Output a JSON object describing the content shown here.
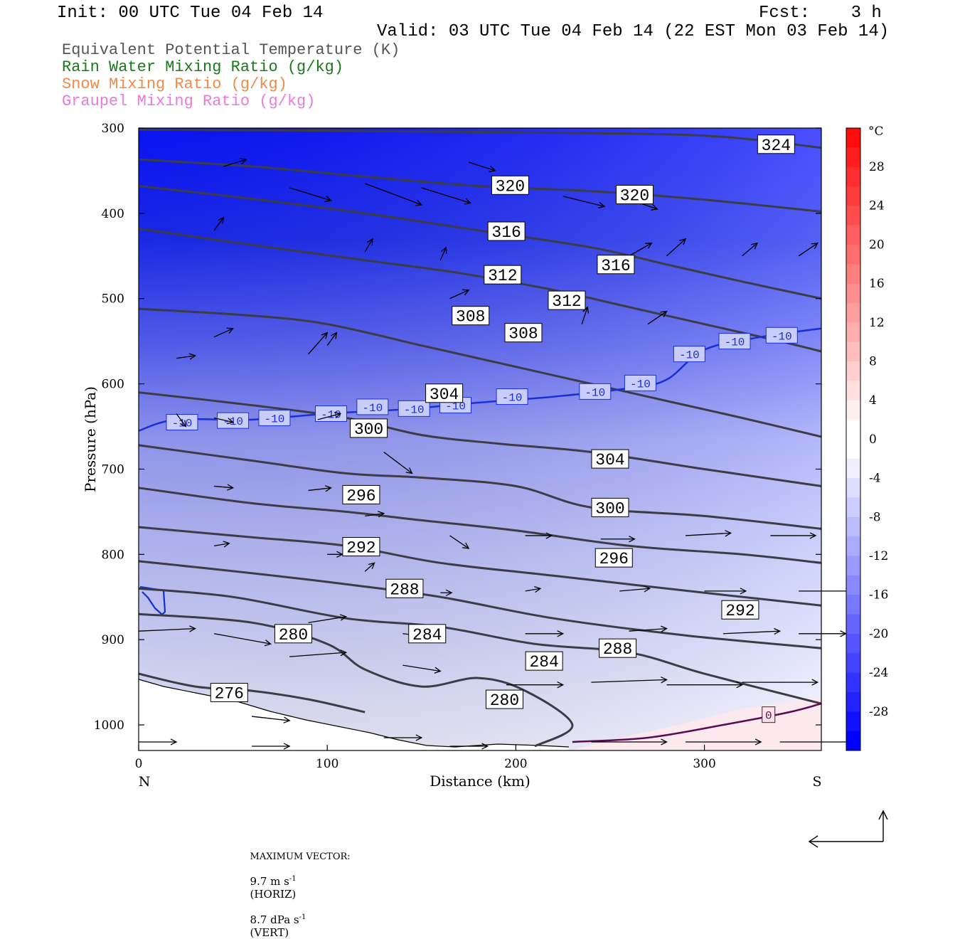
{
  "header": {
    "init": "Init: 00 UTC Tue 04 Feb 14",
    "fcst": "Fcst:    3 h",
    "valid": "Valid: 03 UTC Tue 04 Feb 14 (22 EST Mon 03 Feb 14)",
    "fields": [
      {
        "text": "Equivalent Potential Temperature (K)",
        "color": "#555555"
      },
      {
        "text": "Rain Water Mixing Ratio (g/kg)",
        "color": "#1a7a1a"
      },
      {
        "text": "Snow Mixing Ratio (g/kg)",
        "color": "#f08a4b"
      },
      {
        "text": "Graupel Mixing Ratio (g/kg)",
        "color": "#e87be0"
      }
    ]
  },
  "chart_data": {
    "type": "cross-section",
    "xlabel": "Distance (km)",
    "ylabel": "Pressure (hPa)",
    "x_left_label": "N",
    "x_right_label": "S",
    "xlim": [
      0,
      362
    ],
    "ylim": [
      1030,
      300
    ],
    "xticks": [
      0,
      100,
      200,
      300
    ],
    "yticks": [
      300,
      400,
      500,
      600,
      700,
      800,
      900,
      1000
    ],
    "shading": "temperature (°C)",
    "colorbar": {
      "unit": "°C",
      "ticks": [
        28,
        24,
        20,
        16,
        12,
        8,
        4,
        0,
        -4,
        -8,
        -12,
        -16,
        -20,
        -24,
        -28
      ]
    },
    "theta_e_contours": [
      {
        "value": 324,
        "points": [
          [
            0,
            302
          ],
          [
            100,
            303
          ],
          [
            200,
            305
          ],
          [
            300,
            309
          ],
          [
            362,
            323
          ]
        ],
        "labels": [
          [
            338,
            319
          ]
        ]
      },
      {
        "value": 320,
        "points": [
          [
            0,
            337
          ],
          [
            60,
            345
          ],
          [
            120,
            357
          ],
          [
            180,
            368
          ],
          [
            240,
            374
          ],
          [
            300,
            384
          ],
          [
            362,
            398
          ]
        ],
        "labels": [
          [
            197,
            367
          ],
          [
            263,
            378
          ]
        ]
      },
      {
        "value": 316,
        "points": [
          [
            0,
            368
          ],
          [
            60,
            383
          ],
          [
            120,
            400
          ],
          [
            180,
            420
          ],
          [
            240,
            440
          ],
          [
            280,
            460
          ],
          [
            320,
            480
          ],
          [
            362,
            500
          ]
        ],
        "labels": [
          [
            195,
            421
          ],
          [
            253,
            460
          ]
        ]
      },
      {
        "value": 312,
        "points": [
          [
            0,
            418
          ],
          [
            60,
            437
          ],
          [
            120,
            455
          ],
          [
            170,
            470
          ],
          [
            220,
            490
          ],
          [
            260,
            510
          ],
          [
            300,
            530
          ],
          [
            340,
            550
          ],
          [
            362,
            562
          ]
        ],
        "labels": [
          [
            193,
            472
          ],
          [
            227,
            502
          ]
        ]
      },
      {
        "value": 308,
        "points": [
          [
            0,
            512
          ],
          [
            60,
            520
          ],
          [
            100,
            530
          ],
          [
            150,
            555
          ],
          [
            180,
            570
          ],
          [
            230,
            595
          ],
          [
            280,
            620
          ],
          [
            320,
            640
          ],
          [
            362,
            662
          ]
        ],
        "labels": [
          [
            176,
            520
          ],
          [
            204,
            540
          ]
        ]
      },
      {
        "value": 304,
        "points": [
          [
            0,
            610
          ],
          [
            60,
            625
          ],
          [
            110,
            640
          ],
          [
            150,
            660
          ],
          [
            190,
            670
          ],
          [
            240,
            680
          ],
          [
            300,
            700
          ],
          [
            362,
            720
          ]
        ],
        "labels": [
          [
            162,
            611
          ],
          [
            250,
            688
          ]
        ]
      },
      {
        "value": 300,
        "points": [
          [
            0,
            672
          ],
          [
            60,
            690
          ],
          [
            110,
            705
          ],
          [
            150,
            710
          ],
          [
            200,
            720
          ],
          [
            240,
            745
          ],
          [
            300,
            755
          ],
          [
            362,
            770
          ]
        ],
        "labels": [
          [
            122,
            652
          ],
          [
            250,
            745
          ]
        ]
      },
      {
        "value": 296,
        "points": [
          [
            0,
            722
          ],
          [
            60,
            740
          ],
          [
            110,
            750
          ],
          [
            150,
            760
          ],
          [
            200,
            772
          ],
          [
            260,
            790
          ],
          [
            320,
            800
          ],
          [
            362,
            810
          ]
        ],
        "labels": [
          [
            118,
            730
          ],
          [
            252,
            804
          ]
        ]
      },
      {
        "value": 292,
        "points": [
          [
            0,
            768
          ],
          [
            60,
            780
          ],
          [
            110,
            790
          ],
          [
            160,
            810
          ],
          [
            220,
            825
          ],
          [
            300,
            845
          ],
          [
            362,
            860
          ]
        ],
        "labels": [
          [
            118,
            791
          ],
          [
            319,
            865
          ]
        ]
      },
      {
        "value": 288,
        "points": [
          [
            0,
            808
          ],
          [
            60,
            822
          ],
          [
            110,
            835
          ],
          [
            160,
            850
          ],
          [
            220,
            875
          ],
          [
            290,
            895
          ],
          [
            362,
            910
          ]
        ],
        "labels": [
          [
            141,
            840
          ],
          [
            254,
            910
          ]
        ]
      },
      {
        "value": 284,
        "points": [
          [
            0,
            840
          ],
          [
            50,
            850
          ],
          [
            110,
            875
          ],
          [
            160,
            885
          ],
          [
            210,
            905
          ],
          [
            260,
            915
          ],
          [
            300,
            940
          ],
          [
            362,
            975
          ]
        ],
        "labels": [
          [
            153,
            893
          ],
          [
            215,
            925
          ]
        ]
      },
      {
        "value": 280,
        "points": [
          [
            0,
            870
          ],
          [
            60,
            880
          ],
          [
            100,
            905
          ],
          [
            120,
            935
          ],
          [
            150,
            955
          ],
          [
            180,
            945
          ],
          [
            205,
            960
          ],
          [
            230,
            1000
          ],
          [
            210,
            1025
          ]
        ],
        "labels": [
          [
            82,
            893
          ],
          [
            194,
            970
          ]
        ]
      },
      {
        "value": 276,
        "points": [
          [
            0,
            940
          ],
          [
            30,
            955
          ],
          [
            60,
            960
          ],
          [
            90,
            970
          ],
          [
            120,
            985
          ]
        ],
        "labels": [
          [
            48,
            962
          ]
        ]
      }
    ],
    "isotherm_minus10": {
      "value": "-10",
      "points": [
        [
          0,
          655
        ],
        [
          20,
          642
        ],
        [
          60,
          642
        ],
        [
          100,
          635
        ],
        [
          140,
          630
        ],
        [
          180,
          622
        ],
        [
          220,
          615
        ],
        [
          260,
          605
        ],
        [
          280,
          595
        ],
        [
          300,
          560
        ],
        [
          330,
          545
        ],
        [
          362,
          535
        ]
      ],
      "labels": [
        [
          23,
          645
        ],
        [
          50,
          643
        ],
        [
          72,
          640
        ],
        [
          102,
          635
        ],
        [
          124,
          627
        ],
        [
          146,
          629
        ],
        [
          168,
          625
        ],
        [
          198,
          615
        ],
        [
          242,
          609
        ],
        [
          266,
          599
        ],
        [
          292,
          565
        ],
        [
          316,
          550
        ],
        [
          341,
          543
        ]
      ]
    },
    "isotherm_zero": {
      "value": "0",
      "points": [
        [
          230,
          1020
        ],
        [
          270,
          1015
        ],
        [
          310,
          1000
        ],
        [
          345,
          985
        ],
        [
          362,
          975
        ]
      ],
      "labels": [
        [
          334,
          988
        ]
      ]
    },
    "vectors": [
      [
        45,
        345,
        12,
        -8
      ],
      [
        80,
        370,
        22,
        15
      ],
      [
        120,
        365,
        30,
        25
      ],
      [
        150,
        370,
        26,
        18
      ],
      [
        175,
        340,
        14,
        10
      ],
      [
        165,
        500,
        10,
        -10
      ],
      [
        225,
        380,
        22,
        12
      ],
      [
        255,
        380,
        20,
        15
      ],
      [
        40,
        420,
        5,
        -15
      ],
      [
        40,
        545,
        10,
        -10
      ],
      [
        90,
        565,
        10,
        -25
      ],
      [
        20,
        635,
        5,
        15
      ],
      [
        40,
        640,
        10,
        5
      ],
      [
        95,
        642,
        12,
        -7
      ],
      [
        130,
        680,
        15,
        25
      ],
      [
        40,
        720,
        10,
        2
      ],
      [
        90,
        725,
        12,
        -3
      ],
      [
        120,
        755,
        10,
        -3
      ],
      [
        165,
        778,
        10,
        15
      ],
      [
        205,
        778,
        14,
        0
      ],
      [
        245,
        782,
        18,
        0
      ],
      [
        290,
        778,
        24,
        -3
      ],
      [
        335,
        778,
        24,
        0
      ],
      [
        40,
        790,
        8,
        -3
      ],
      [
        100,
        800,
        8,
        0
      ],
      [
        120,
        820,
        5,
        -10
      ],
      [
        160,
        845,
        6,
        0
      ],
      [
        205,
        843,
        8,
        -3
      ],
      [
        255,
        843,
        16,
        -3
      ],
      [
        300,
        843,
        22,
        0
      ],
      [
        350,
        843,
        28,
        0
      ],
      [
        0,
        890,
        30,
        -3
      ],
      [
        40,
        893,
        30,
        12
      ],
      [
        90,
        880,
        20,
        -7
      ],
      [
        80,
        920,
        30,
        -5
      ],
      [
        140,
        893,
        20,
        5
      ],
      [
        205,
        893,
        20,
        0
      ],
      [
        260,
        890,
        20,
        -3
      ],
      [
        310,
        893,
        30,
        -3
      ],
      [
        350,
        893,
        25,
        0
      ],
      [
        140,
        930,
        20,
        7
      ],
      [
        195,
        953,
        30,
        0
      ],
      [
        240,
        950,
        40,
        -3
      ],
      [
        280,
        953,
        40,
        0
      ],
      [
        320,
        950,
        40,
        0
      ],
      [
        60,
        990,
        20,
        5
      ],
      [
        130,
        1015,
        20,
        0
      ],
      [
        165,
        1025,
        20,
        0
      ],
      [
        240,
        1020,
        40,
        0
      ],
      [
        290,
        1020,
        40,
        0
      ],
      [
        340,
        1020,
        40,
        0
      ],
      [
        0,
        1020,
        20,
        0
      ],
      [
        60,
        1025,
        20,
        0
      ],
      [
        20,
        570,
        10,
        -3
      ],
      [
        100,
        555,
        5,
        -15
      ],
      [
        120,
        445,
        4,
        -15
      ],
      [
        160,
        455,
        3,
        -15
      ],
      [
        260,
        450,
        12,
        -15
      ],
      [
        280,
        450,
        10,
        -20
      ],
      [
        320,
        450,
        8,
        -15
      ],
      [
        350,
        450,
        10,
        -15
      ],
      [
        235,
        530,
        3,
        -20
      ],
      [
        270,
        530,
        10,
        -15
      ]
    ]
  },
  "footer": {
    "max_vector_label": "MAXIMUM VECTOR:",
    "horiz_value": "9.7 m s",
    "horiz_exp": "-1",
    "horiz_unit": "(HORIZ)",
    "vert_value": "8.7 dPa s",
    "vert_exp": "-1",
    "vert_unit": "(VERT)"
  }
}
